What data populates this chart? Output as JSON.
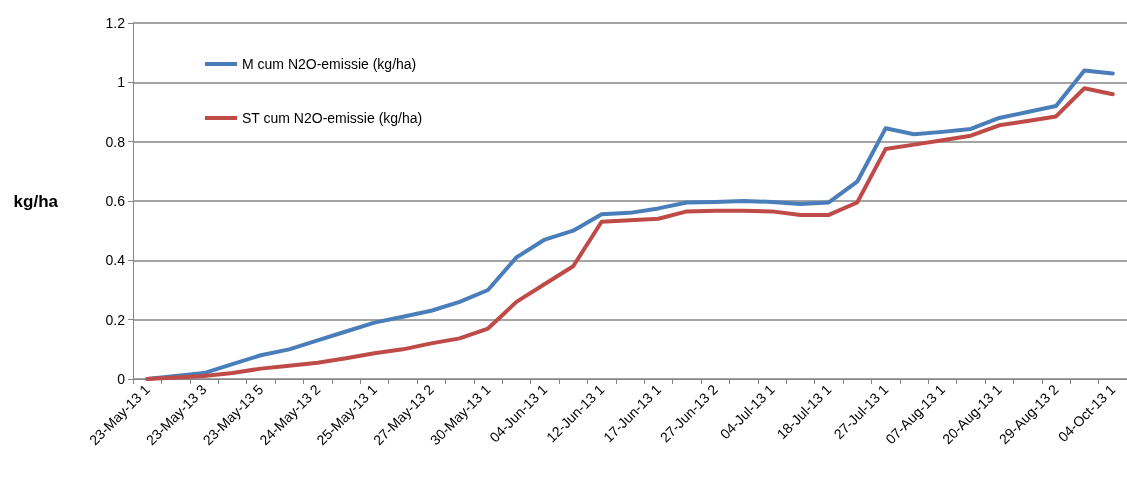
{
  "chart_data": {
    "type": "line",
    "ylabel": "kg/ha",
    "categories": [
      "23-May-13 1",
      null,
      "23-May-13 3",
      null,
      "23-May-13 5",
      null,
      "24-May-13 2",
      null,
      "25-May-13 1",
      null,
      "27-May-13 2",
      null,
      "30-May-13 1",
      null,
      "04-Jun-13 1",
      null,
      "12-Jun-13 1",
      null,
      "17-Jun-13 1",
      null,
      "27-Jun-13 2",
      null,
      "04-Jul-13 1",
      null,
      "18-Jul-13 1",
      null,
      "27-Jul-13 1",
      null,
      "07-Aug-13 1",
      null,
      "20-Aug-13 1",
      null,
      "29-Aug-13 2",
      null,
      "04-Oct-13 1"
    ],
    "series": [
      {
        "name": "M cum N2O-emissie (kg/ha)",
        "color": "#4a7ebb",
        "values": [
          0,
          0.01,
          0.02,
          0.05,
          0.08,
          0.1,
          0.13,
          0.16,
          0.19,
          0.21,
          0.23,
          0.26,
          0.3,
          0.41,
          0.47,
          0.5,
          0.555,
          0.56,
          0.575,
          0.595,
          0.597,
          0.6,
          0.597,
          0.59,
          0.595,
          0.665,
          0.845,
          0.825,
          0.833,
          0.843,
          0.88,
          0.9,
          0.92,
          1.04,
          1.03
        ]
      },
      {
        "name": "ST cum N2O-emissie (kg/ha)",
        "color": "#be4b48",
        "values": [
          0,
          0.005,
          0.01,
          0.02,
          0.035,
          0.045,
          0.055,
          0.07,
          0.087,
          0.1,
          0.12,
          0.137,
          0.17,
          0.26,
          0.32,
          0.38,
          0.53,
          0.535,
          0.54,
          0.565,
          0.567,
          0.567,
          0.565,
          0.553,
          0.553,
          0.595,
          0.775,
          0.79,
          0.805,
          0.82,
          0.855,
          0.87,
          0.885,
          0.98,
          0.96
        ]
      }
    ],
    "ylim": [
      0,
      1.2
    ],
    "yticks": [
      0,
      0.2,
      0.4,
      0.6,
      0.8,
      1,
      1.2
    ],
    "grid": "y",
    "legend": "top left",
    "marker": "none",
    "line_style": "solid"
  }
}
